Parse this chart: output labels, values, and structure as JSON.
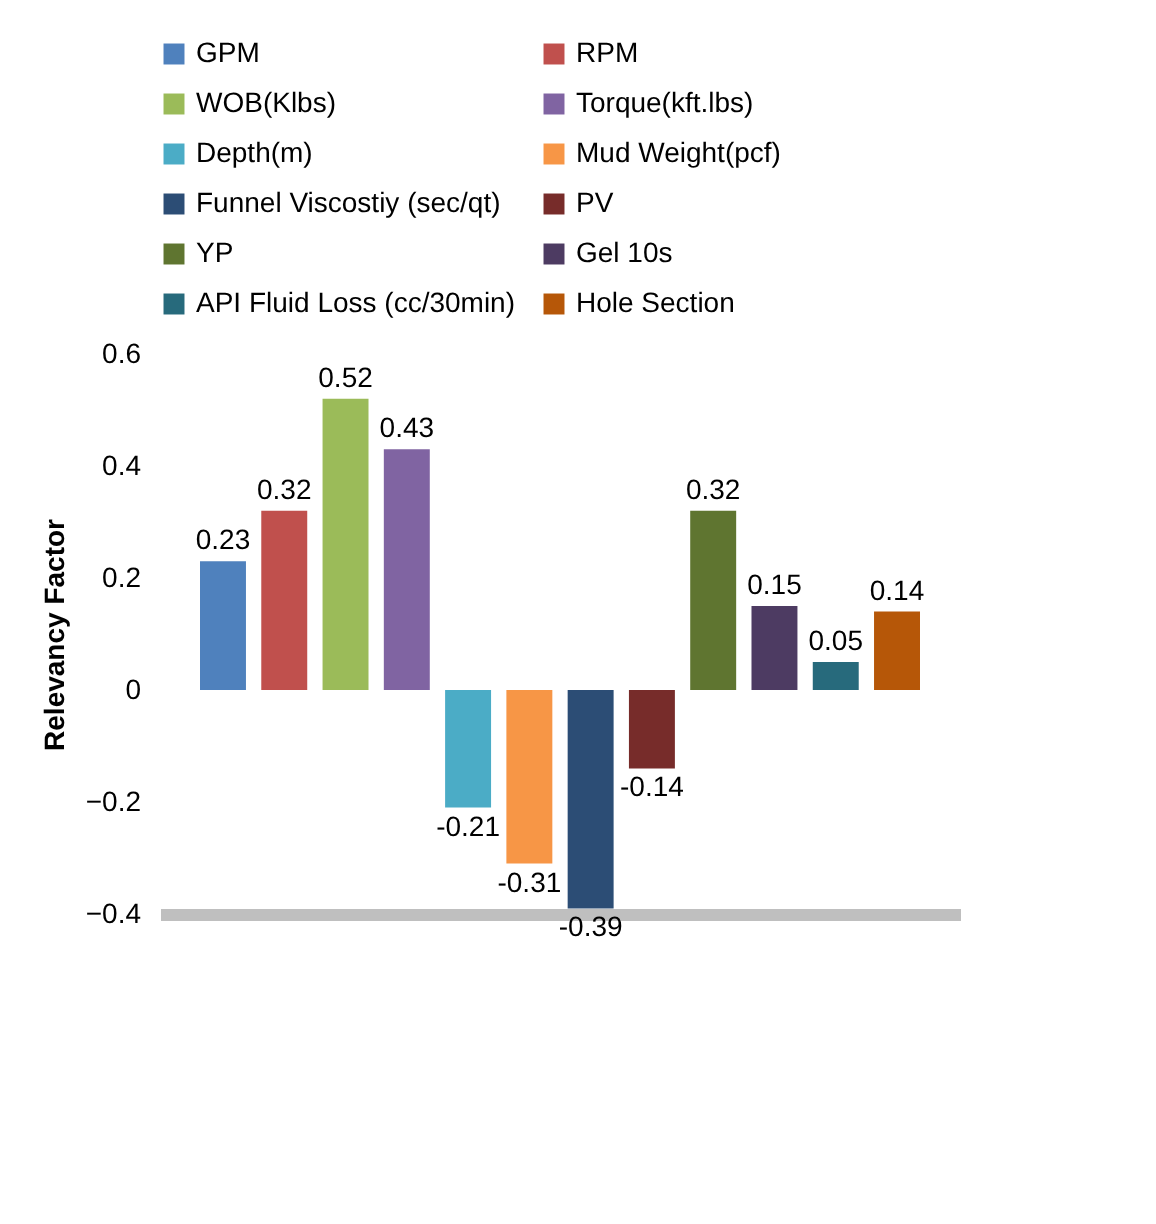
{
  "chart_data": {
    "type": "bar",
    "ylabel": "Relevancy Factor",
    "categories": [
      null
    ],
    "series": [
      {
        "name": "GPM",
        "color": "#4f81bd",
        "values": [
          0.23
        ]
      },
      {
        "name": "RPM",
        "color": "#c0504d",
        "values": [
          0.32
        ]
      },
      {
        "name": "WOB(Klbs)",
        "color": "#9bbb59",
        "values": [
          0.52
        ]
      },
      {
        "name": "Torque(kft.lbs)",
        "color": "#8064a2",
        "values": [
          0.43
        ]
      },
      {
        "name": "Depth(m)",
        "color": "#4bacc6",
        "values": [
          -0.21
        ]
      },
      {
        "name": "Mud Weight(pcf)",
        "color": "#f79646",
        "values": [
          -0.31
        ]
      },
      {
        "name": "Funnel Viscostiy (sec/qt)",
        "color": "#2c4d75",
        "values": [
          -0.39
        ]
      },
      {
        "name": "PV",
        "color": "#772c2a",
        "values": [
          -0.14
        ]
      },
      {
        "name": "YP",
        "color": "#5f7530",
        "values": [
          0.32
        ]
      },
      {
        "name": "Gel 10s",
        "color": "#4d3b62",
        "values": [
          0.15
        ]
      },
      {
        "name": "API Fluid Loss (cc/30min)",
        "color": "#276a7c",
        "values": [
          0.05
        ]
      },
      {
        "name": "Hole Section",
        "color": "#b65708",
        "values": [
          0.14
        ]
      }
    ],
    "ylim": [
      -0.4,
      0.6
    ],
    "yticks": [
      -0.4,
      -0.2,
      0,
      0.2,
      0.4,
      0.6
    ],
    "grid": false,
    "legend": "top",
    "data_labels": true,
    "tick_labels": "y"
  }
}
